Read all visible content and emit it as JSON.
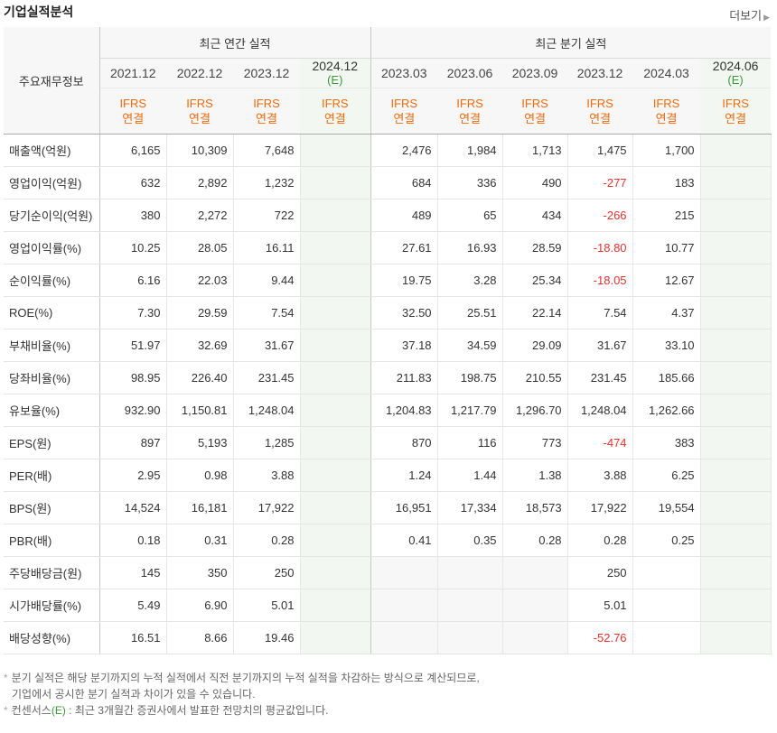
{
  "title": "기업실적분석",
  "more_label": "더보기",
  "label_header": "주요재무정보",
  "groups": {
    "annual": "최근 연간 실적",
    "quarterly": "최근 분기 실적"
  },
  "periods": [
    {
      "date": "2021.12",
      "est": ""
    },
    {
      "date": "2022.12",
      "est": ""
    },
    {
      "date": "2023.12",
      "est": ""
    },
    {
      "date": "2024.12",
      "est": "(E)"
    },
    {
      "date": "2023.03",
      "est": ""
    },
    {
      "date": "2023.06",
      "est": ""
    },
    {
      "date": "2023.09",
      "est": ""
    },
    {
      "date": "2023.12",
      "est": ""
    },
    {
      "date": "2024.03",
      "est": ""
    },
    {
      "date": "2024.06",
      "est": "(E)"
    }
  ],
  "ifrs_line1": "IFRS",
  "ifrs_line2": "연결",
  "rows": [
    {
      "label": "매출액(억원)",
      "values": [
        "6,165",
        "10,309",
        "7,648",
        "",
        "2,476",
        "1,984",
        "1,713",
        "1,475",
        "1,700",
        ""
      ]
    },
    {
      "label": "영업이익(억원)",
      "values": [
        "632",
        "2,892",
        "1,232",
        "",
        "684",
        "336",
        "490",
        "-277",
        "183",
        ""
      ]
    },
    {
      "label": "당기순이익(억원)",
      "values": [
        "380",
        "2,272",
        "722",
        "",
        "489",
        "65",
        "434",
        "-266",
        "215",
        ""
      ]
    },
    {
      "label": "영업이익률(%)",
      "values": [
        "10.25",
        "28.05",
        "16.11",
        "",
        "27.61",
        "16.93",
        "28.59",
        "-18.80",
        "10.77",
        ""
      ]
    },
    {
      "label": "순이익률(%)",
      "values": [
        "6.16",
        "22.03",
        "9.44",
        "",
        "19.75",
        "3.28",
        "25.34",
        "-18.05",
        "12.67",
        ""
      ]
    },
    {
      "label": "ROE(%)",
      "values": [
        "7.30",
        "29.59",
        "7.54",
        "",
        "32.50",
        "25.51",
        "22.14",
        "7.54",
        "4.37",
        ""
      ]
    },
    {
      "label": "부채비율(%)",
      "values": [
        "51.97",
        "32.69",
        "31.67",
        "",
        "37.18",
        "34.59",
        "29.09",
        "31.67",
        "33.10",
        ""
      ]
    },
    {
      "label": "당좌비율(%)",
      "values": [
        "98.95",
        "226.40",
        "231.45",
        "",
        "211.83",
        "198.75",
        "210.55",
        "231.45",
        "185.66",
        ""
      ]
    },
    {
      "label": "유보율(%)",
      "values": [
        "932.90",
        "1,150.81",
        "1,248.04",
        "",
        "1,204.83",
        "1,217.79",
        "1,296.70",
        "1,248.04",
        "1,262.66",
        ""
      ]
    },
    {
      "label": "EPS(원)",
      "values": [
        "897",
        "5,193",
        "1,285",
        "",
        "870",
        "116",
        "773",
        "-474",
        "383",
        ""
      ]
    },
    {
      "label": "PER(배)",
      "values": [
        "2.95",
        "0.98",
        "3.88",
        "",
        "1.24",
        "1.44",
        "1.38",
        "3.88",
        "6.25",
        ""
      ]
    },
    {
      "label": "BPS(원)",
      "values": [
        "14,524",
        "16,181",
        "17,922",
        "",
        "16,951",
        "17,334",
        "18,573",
        "17,922",
        "19,554",
        ""
      ]
    },
    {
      "label": "PBR(배)",
      "values": [
        "0.18",
        "0.31",
        "0.28",
        "",
        "0.41",
        "0.35",
        "0.28",
        "0.28",
        "0.25",
        ""
      ]
    },
    {
      "label": "주당배당금(원)",
      "values": [
        "145",
        "350",
        "250",
        "",
        "",
        "",
        "",
        "250",
        "",
        ""
      ]
    },
    {
      "label": "시가배당률(%)",
      "values": [
        "5.49",
        "6.90",
        "5.01",
        "",
        "",
        "",
        "",
        "5.01",
        "",
        ""
      ]
    },
    {
      "label": "배당성향(%)",
      "values": [
        "16.51",
        "8.66",
        "19.46",
        "",
        "",
        "",
        "",
        "-52.76",
        "",
        ""
      ]
    }
  ],
  "notes": {
    "line1": "분기 실적은 해당 분기까지의 누적 실적에서 직전 분기까지의 누적 실적을 차감하는 방식으로 계산되므로,",
    "line2": "기업에서 공시한 분기 실적과 차이가 있을 수 있습니다.",
    "line3_pre": "컨센서스",
    "line3_e": "(E)",
    "line3_post": " : 최근 3개월간 증권사에서 발표한 전망치의 평균값입니다."
  },
  "colors": {
    "negative": "#e5322d",
    "ifrs": "#f06a0f",
    "estimate": "#3a9a3a",
    "estimate_bg": "#f2f8f1"
  }
}
